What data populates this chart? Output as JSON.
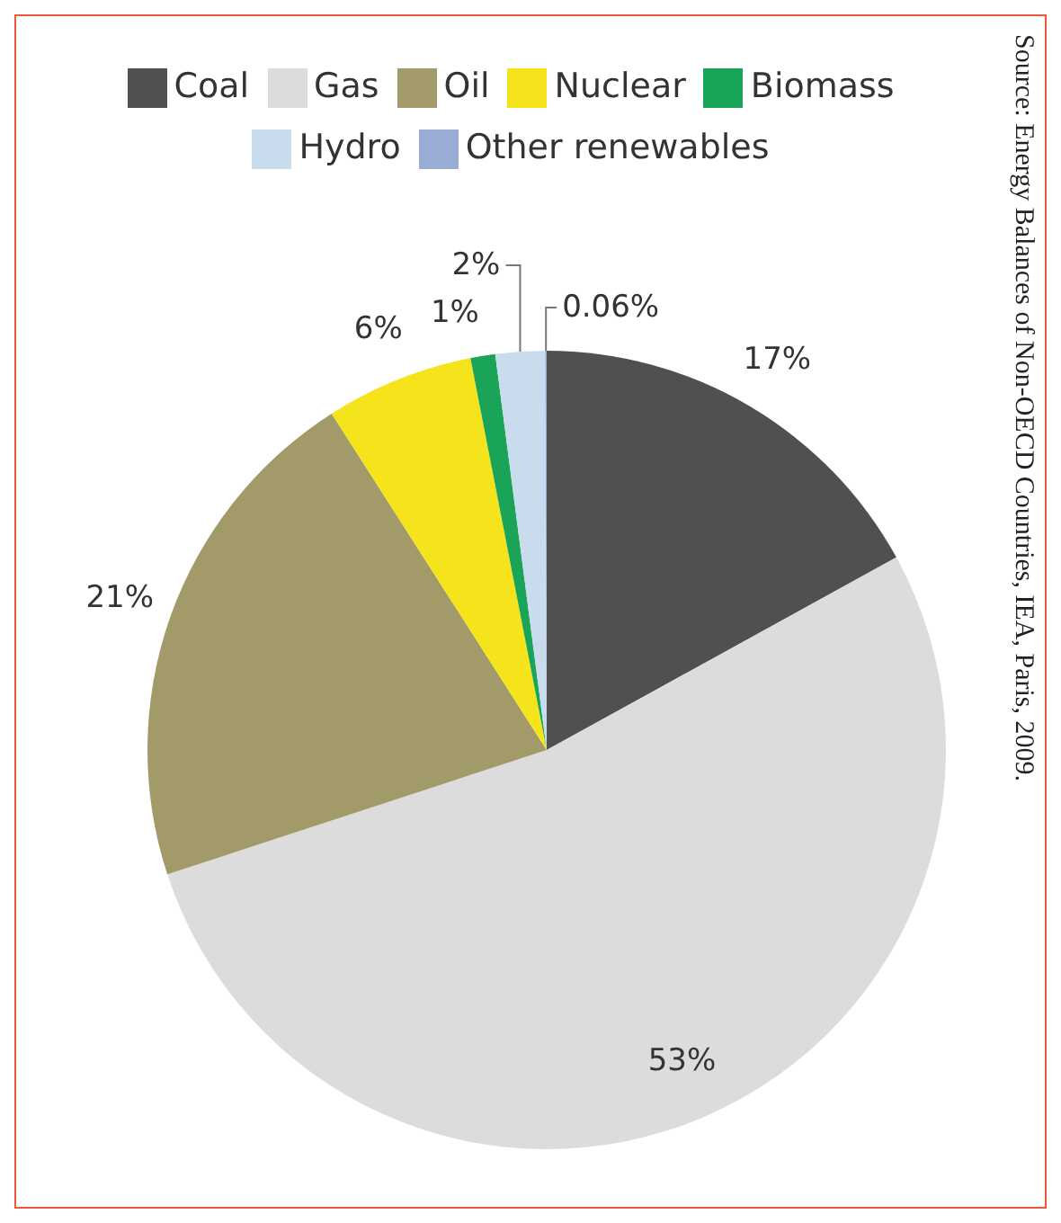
{
  "chart_data": {
    "type": "pie",
    "categories": [
      "Coal",
      "Gas",
      "Oil",
      "Nuclear",
      "Biomass",
      "Hydro",
      "Other renewables"
    ],
    "values": [
      17,
      53,
      21,
      6,
      1,
      2,
      0.06
    ],
    "colors": [
      "#505050",
      "#dcdcdc",
      "#a39a6a",
      "#f5e41c",
      "#1aa457",
      "#c9dcee",
      "#98acd6"
    ],
    "value_labels": [
      "17%",
      "53%",
      "21%",
      "6%",
      "1%",
      "2%",
      "0.06%"
    ],
    "legend": "top",
    "annotations": [
      "Source: Energy Balances of Non-OECD Countries, IEA, Paris, 2009."
    ]
  }
}
